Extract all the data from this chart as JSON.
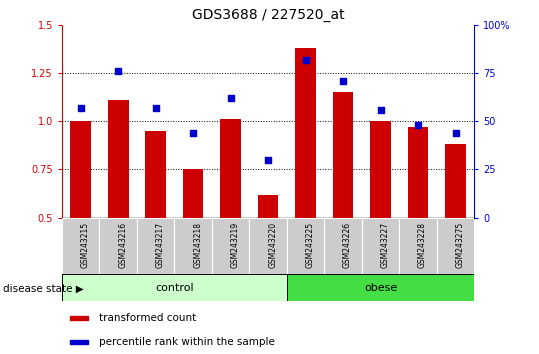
{
  "title": "GDS3688 / 227520_at",
  "samples": [
    "GSM243215",
    "GSM243216",
    "GSM243217",
    "GSM243218",
    "GSM243219",
    "GSM243220",
    "GSM243225",
    "GSM243226",
    "GSM243227",
    "GSM243228",
    "GSM243275"
  ],
  "transformed_count": [
    1.0,
    1.11,
    0.95,
    0.75,
    1.01,
    0.62,
    1.38,
    1.15,
    1.0,
    0.97,
    0.88
  ],
  "percentile_rank": [
    57,
    76,
    57,
    44,
    62,
    30,
    82,
    71,
    56,
    48,
    44
  ],
  "groups": [
    {
      "label": "control",
      "start": 0,
      "end": 6,
      "color": "#ccffcc"
    },
    {
      "label": "obese",
      "start": 6,
      "end": 11,
      "color": "#44dd44"
    }
  ],
  "ylim_left": [
    0.5,
    1.5
  ],
  "ylim_right": [
    0,
    100
  ],
  "yticks_left": [
    0.5,
    0.75,
    1.0,
    1.25,
    1.5
  ],
  "yticks_right": [
    0,
    25,
    50,
    75,
    100
  ],
  "ytick_labels_right": [
    "0",
    "25",
    "50",
    "75",
    "100%"
  ],
  "bar_color": "#cc0000",
  "dot_color": "#0000cc",
  "bar_bottom": 0.5,
  "dotted_lines": [
    0.75,
    1.0,
    1.25
  ],
  "legend_items": [
    {
      "label": "transformed count",
      "color": "#cc0000"
    },
    {
      "label": "percentile rank within the sample",
      "color": "#0000cc"
    }
  ],
  "disease_state_label": "disease state",
  "title_fontsize": 10,
  "tick_fontsize": 7,
  "sample_fontsize": 5.5,
  "group_fontsize": 8,
  "legend_fontsize": 7.5
}
